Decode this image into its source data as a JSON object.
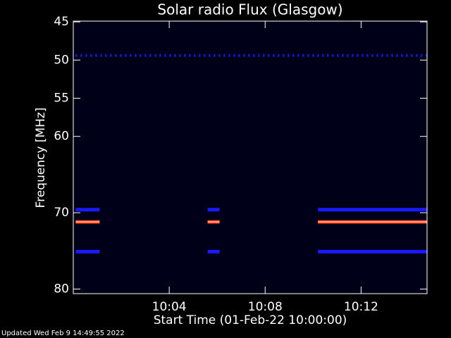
{
  "chart_data": {
    "type": "spectrogram",
    "title": "Solar radio Flux (Glasgow)",
    "xlabel": "Start Time (01-Feb-22 10:00:00)",
    "ylabel": "Frequency [MHz]",
    "footer": "Updated Wed Feb  9 14:49:55 2022",
    "xlim": [
      0,
      14.75
    ],
    "xticks": [
      {
        "value": 4,
        "label": "10:04"
      },
      {
        "value": 8,
        "label": "10:08"
      },
      {
        "value": 12,
        "label": "10:12"
      }
    ],
    "ylim": [
      44.9,
      80.6
    ],
    "yticks": [
      45,
      50,
      55,
      60,
      70,
      80
    ],
    "background": "#000018",
    "bands": [
      {
        "freq": 49.4,
        "color": "#1a1aff",
        "dashed": true,
        "segments": [
          [
            0.1,
            14.75
          ]
        ]
      },
      {
        "freq": 69.6,
        "color": "#1a1aff",
        "dashed": false,
        "segments": [
          [
            0.1,
            1.1
          ],
          [
            5.6,
            6.1
          ],
          [
            10.2,
            14.75
          ]
        ]
      },
      {
        "freq": 71.2,
        "color": "#ff3a1a",
        "dashed": false,
        "segments": [
          [
            0.1,
            1.1
          ],
          [
            5.6,
            6.1
          ],
          [
            10.2,
            14.75
          ]
        ]
      },
      {
        "freq": 75.1,
        "color": "#1a1aff",
        "dashed": false,
        "segments": [
          [
            0.1,
            1.1
          ],
          [
            5.6,
            6.1
          ],
          [
            10.2,
            14.75
          ]
        ]
      }
    ]
  }
}
